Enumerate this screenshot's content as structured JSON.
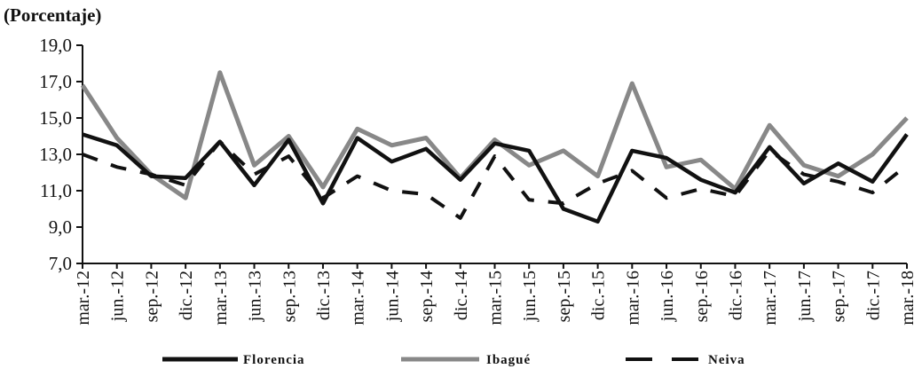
{
  "chart_data": {
    "type": "line",
    "ylabel": "(Porcentaje)",
    "ylim": [
      7,
      19
    ],
    "yticks": [
      "19,0",
      "17,0",
      "15,0",
      "13,0",
      "11,0",
      "9,0",
      "7,0"
    ],
    "categories": [
      "mar.-12",
      "jun.-12",
      "sep.-12",
      "dic.-12",
      "mar.-13",
      "jun.-13",
      "sep.-13",
      "dic.-13",
      "mar.-14",
      "jun.-14",
      "sep.-14",
      "dic.-14",
      "mar.-15",
      "jun.-15",
      "sep.-15",
      "dic.-15",
      "mar.-16",
      "jun.-16",
      "sep.-16",
      "dic.-16",
      "mar.-17",
      "jun.-17",
      "sep.-17",
      "dic.-17",
      "mar.-18"
    ],
    "legend_position": "bottom",
    "grid": false,
    "series": [
      {
        "name": "Florencia",
        "color": "#111111",
        "style": "solid",
        "values": [
          14.1,
          13.5,
          11.8,
          11.7,
          13.7,
          11.3,
          13.8,
          10.3,
          13.9,
          12.6,
          13.3,
          11.6,
          13.6,
          13.2,
          10.0,
          9.3,
          13.2,
          12.8,
          11.6,
          10.9,
          13.4,
          11.4,
          12.5,
          11.5,
          14.1
        ]
      },
      {
        "name": "Ibagué",
        "color": "#888888",
        "style": "solid",
        "values": [
          16.8,
          13.9,
          11.9,
          10.6,
          17.5,
          12.4,
          14.0,
          11.2,
          14.4,
          13.5,
          13.9,
          11.7,
          13.8,
          12.4,
          13.2,
          11.8,
          16.9,
          12.3,
          12.7,
          11.1,
          14.6,
          12.4,
          11.8,
          13.0,
          15.0
        ]
      },
      {
        "name": "Neiva",
        "color": "#111111",
        "style": "dashed",
        "values": [
          13.0,
          12.3,
          11.9,
          11.3,
          13.7,
          11.9,
          12.9,
          10.6,
          11.8,
          11.0,
          10.8,
          9.5,
          12.9,
          10.5,
          10.3,
          11.4,
          12.1,
          10.6,
          11.1,
          10.7,
          13.2,
          11.9,
          11.5,
          10.9,
          12.4
        ]
      }
    ]
  }
}
